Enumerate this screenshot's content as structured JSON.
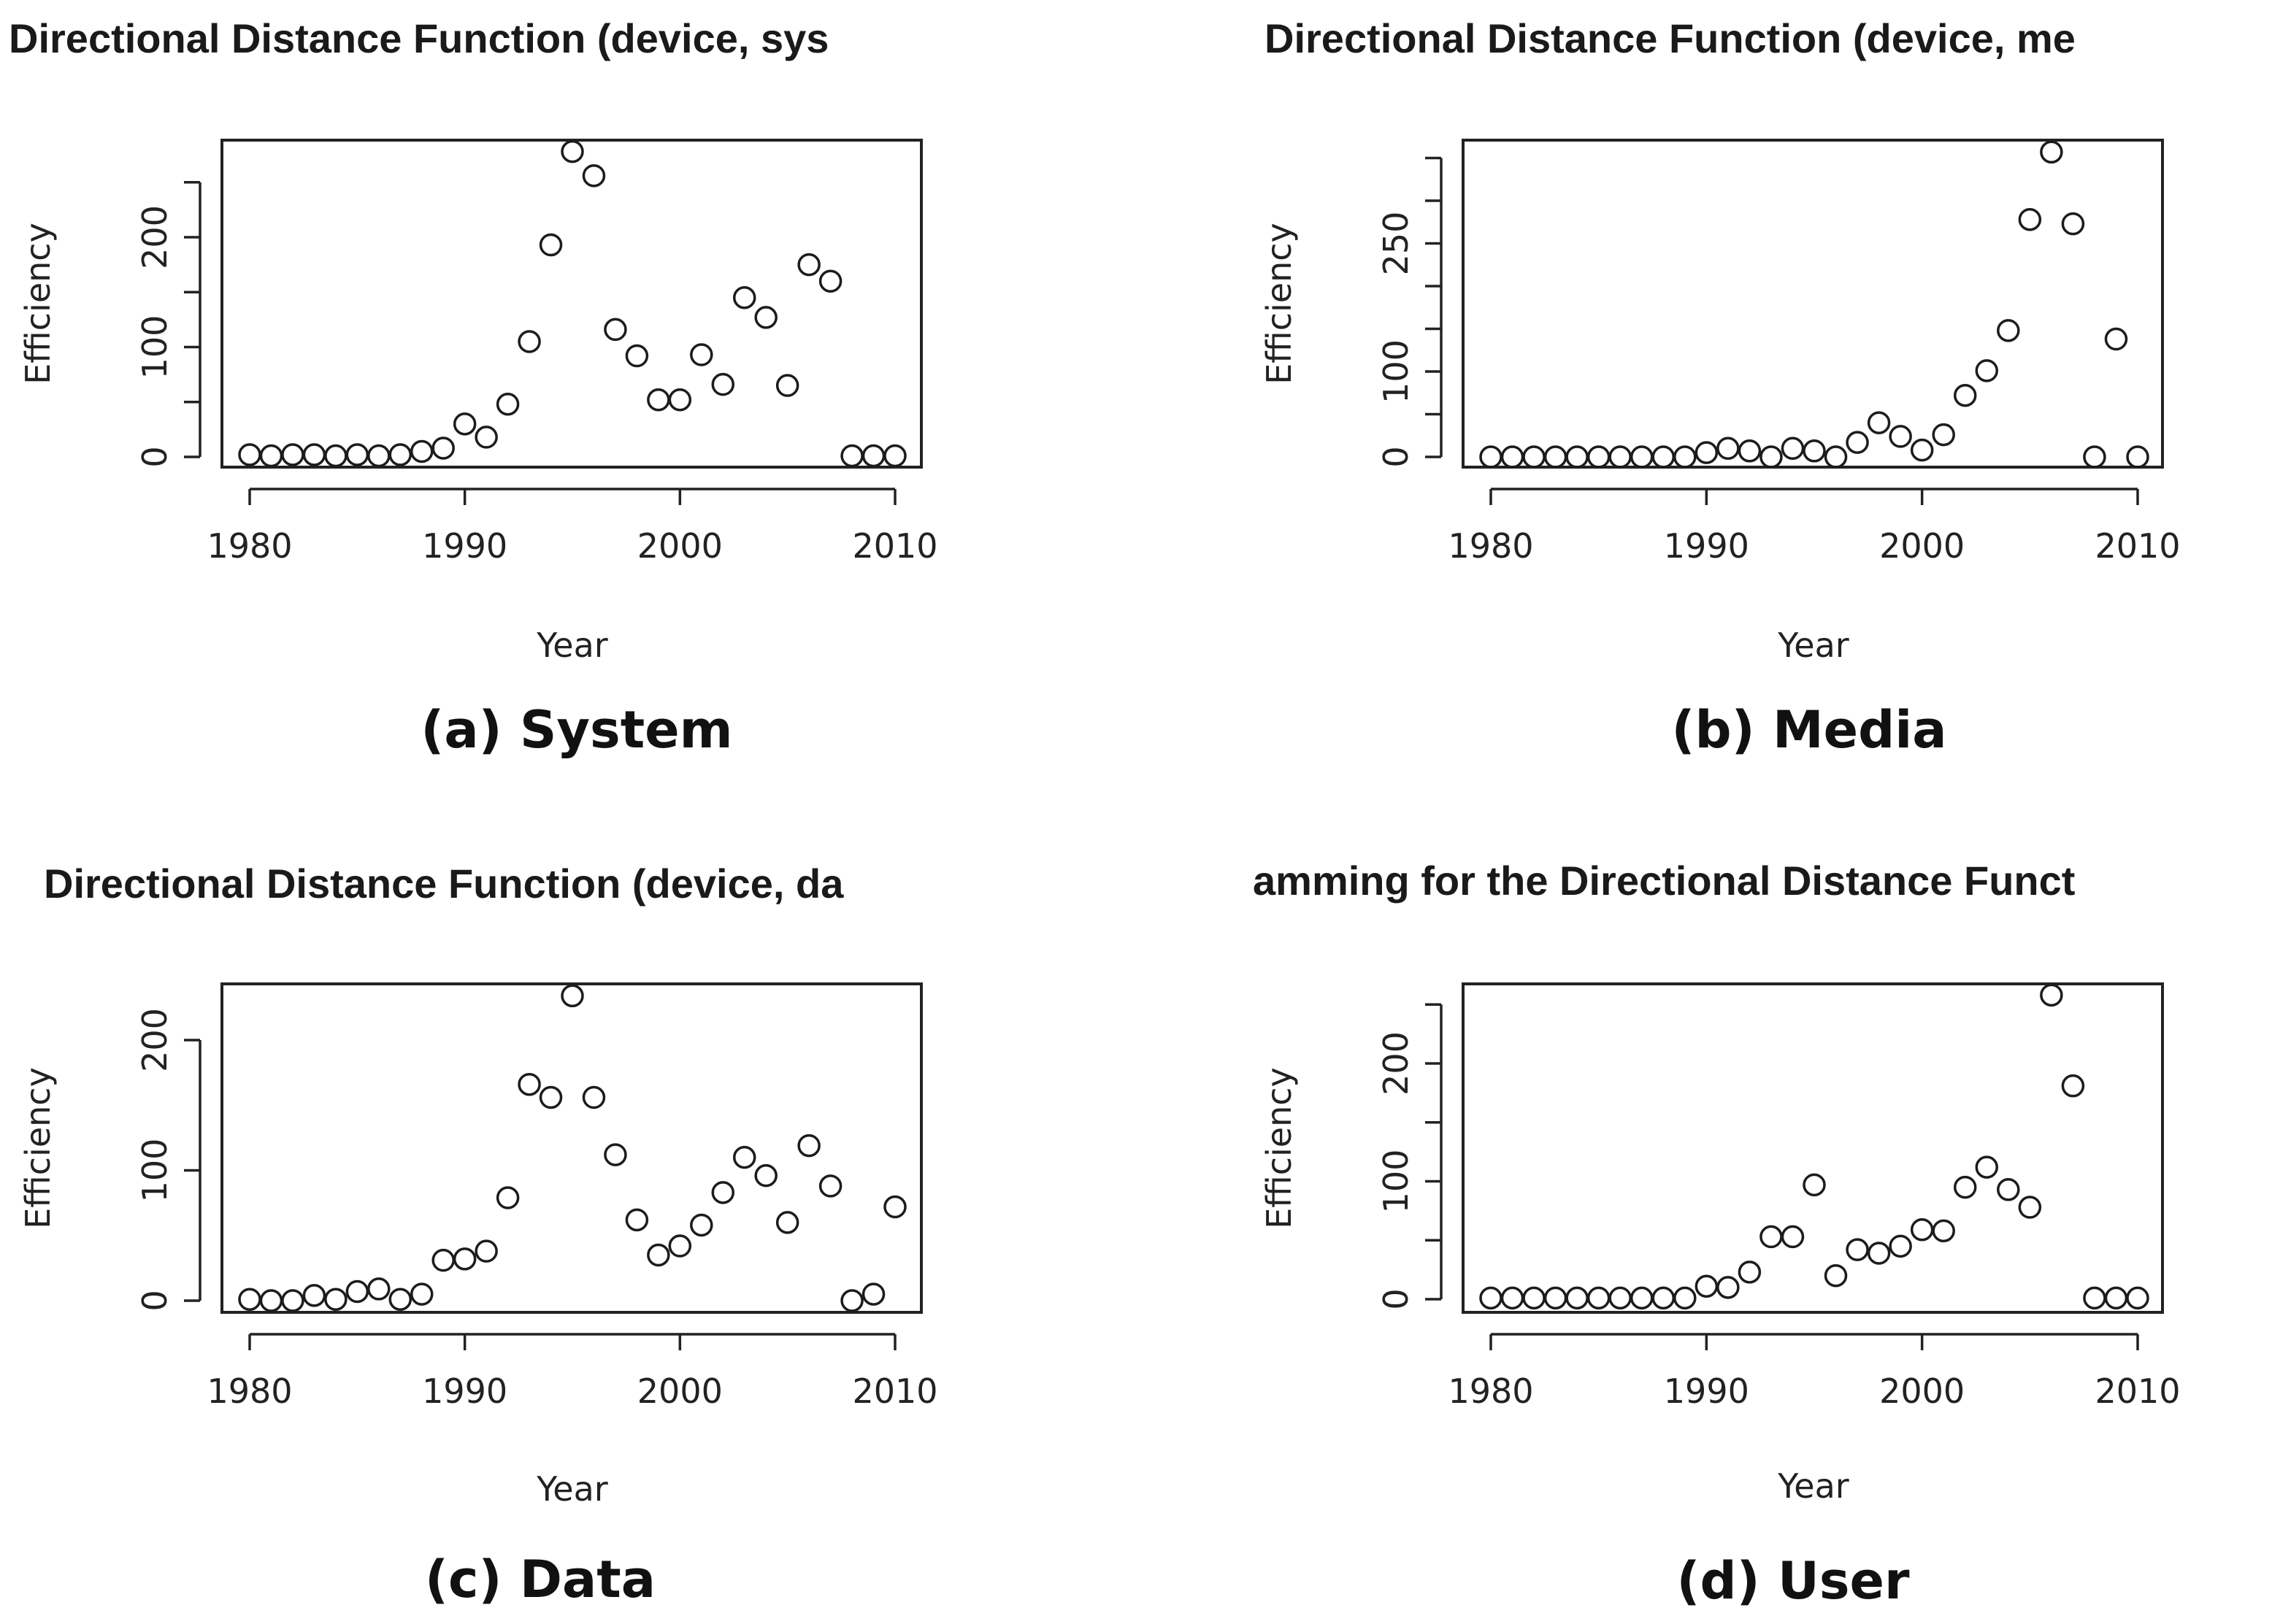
{
  "chart_data": [
    {
      "type": "scatter",
      "title": "Directional Distance Function (device, sys",
      "xlabel": "Year",
      "ylabel": "Efficiency",
      "caption": "(a) System",
      "xlim": [
        1980,
        2010
      ],
      "ylim": [
        0,
        280
      ],
      "xticks": [
        1980,
        1990,
        2000,
        2010
      ],
      "yticks": [
        0,
        50,
        100,
        150,
        200,
        250
      ],
      "ytick_labels": [
        "0",
        "",
        "100",
        "",
        "200",
        ""
      ],
      "x": [
        1980,
        1981,
        1982,
        1983,
        1984,
        1985,
        1986,
        1987,
        1988,
        1989,
        1990,
        1991,
        1992,
        1993,
        1994,
        1995,
        1996,
        1997,
        1998,
        1999,
        2000,
        2001,
        2002,
        2003,
        2004,
        2005,
        2006,
        2007,
        2008,
        2009,
        2010
      ],
      "y": [
        2,
        1,
        2,
        2,
        1,
        2,
        1,
        2,
        5,
        8,
        30,
        18,
        48,
        105,
        193,
        278,
        256,
        116,
        92,
        52,
        52,
        93,
        66,
        145,
        127,
        65,
        175,
        160,
        1,
        1,
        1
      ]
    },
    {
      "type": "scatter",
      "title": "Directional Distance Function (device, me",
      "xlabel": "Year",
      "ylabel": "Efficiency",
      "caption": "(b) Media",
      "xlim": [
        1980,
        2010
      ],
      "ylim": [
        0,
        350
      ],
      "xticks": [
        1980,
        1990,
        2000,
        2010
      ],
      "yticks": [
        0,
        50,
        100,
        150,
        200,
        250,
        300,
        350
      ],
      "ytick_labels": [
        "0",
        "",
        "100",
        "",
        "",
        "250",
        "",
        ""
      ],
      "x": [
        1980,
        1981,
        1982,
        1983,
        1984,
        1985,
        1986,
        1987,
        1988,
        1989,
        1990,
        1991,
        1992,
        1993,
        1994,
        1995,
        1996,
        1997,
        1998,
        1999,
        2000,
        2001,
        2002,
        2003,
        2004,
        2005,
        2006,
        2007,
        2008,
        2009,
        2010
      ],
      "y": [
        0,
        0,
        0,
        0,
        0,
        0,
        0,
        0,
        0,
        0,
        5,
        10,
        7,
        0,
        10,
        7,
        0,
        17,
        40,
        24,
        8,
        26,
        72,
        101,
        148,
        278,
        357,
        273,
        0,
        138,
        0
      ]
    },
    {
      "type": "scatter",
      "title": "Directional Distance Function (device, da",
      "xlabel": "Year",
      "ylabel": "Efficiency",
      "caption": "(c) Data",
      "xlim": [
        1980,
        2010
      ],
      "ylim": [
        0,
        235
      ],
      "xticks": [
        1980,
        1990,
        2000,
        2010
      ],
      "yticks": [
        0,
        100,
        200
      ],
      "ytick_labels": [
        "0",
        "100",
        "200"
      ],
      "x": [
        1980,
        1981,
        1982,
        1983,
        1984,
        1985,
        1986,
        1987,
        1988,
        1989,
        1990,
        1991,
        1992,
        1993,
        1994,
        1995,
        1996,
        1997,
        1998,
        1999,
        2000,
        2001,
        2002,
        2003,
        2004,
        2005,
        2006,
        2007,
        2008,
        2009,
        2010
      ],
      "y": [
        1,
        0,
        0,
        4,
        1,
        7,
        9,
        1,
        5,
        31,
        32,
        38,
        79,
        166,
        156,
        234,
        156,
        112,
        62,
        35,
        42,
        58,
        83,
        110,
        96,
        60,
        119,
        88,
        0,
        5,
        72
      ]
    },
    {
      "type": "scatter",
      "title": "amming for the Directional Distance Funct",
      "xlabel": "Year",
      "ylabel": "Efficiency",
      "caption": "(d) User",
      "xlim": [
        1980,
        2010
      ],
      "ylim": [
        0,
        258
      ],
      "xticks": [
        1980,
        1990,
        2000,
        2010
      ],
      "yticks": [
        0,
        50,
        100,
        150,
        200,
        250
      ],
      "ytick_labels": [
        "0",
        "",
        "100",
        "",
        "200",
        ""
      ],
      "x": [
        1980,
        1981,
        1982,
        1983,
        1984,
        1985,
        1986,
        1987,
        1988,
        1989,
        1990,
        1991,
        1992,
        1993,
        1994,
        1995,
        1996,
        1997,
        1998,
        1999,
        2000,
        2001,
        2002,
        2003,
        2004,
        2005,
        2006,
        2007,
        2008,
        2009,
        2010
      ],
      "y": [
        1,
        1,
        1,
        1,
        1,
        1,
        1,
        1,
        1,
        1,
        11,
        10,
        23,
        53,
        53,
        97,
        20,
        42,
        39,
        45,
        59,
        58,
        95,
        112,
        93,
        78,
        258,
        181,
        1,
        1,
        1
      ]
    }
  ]
}
